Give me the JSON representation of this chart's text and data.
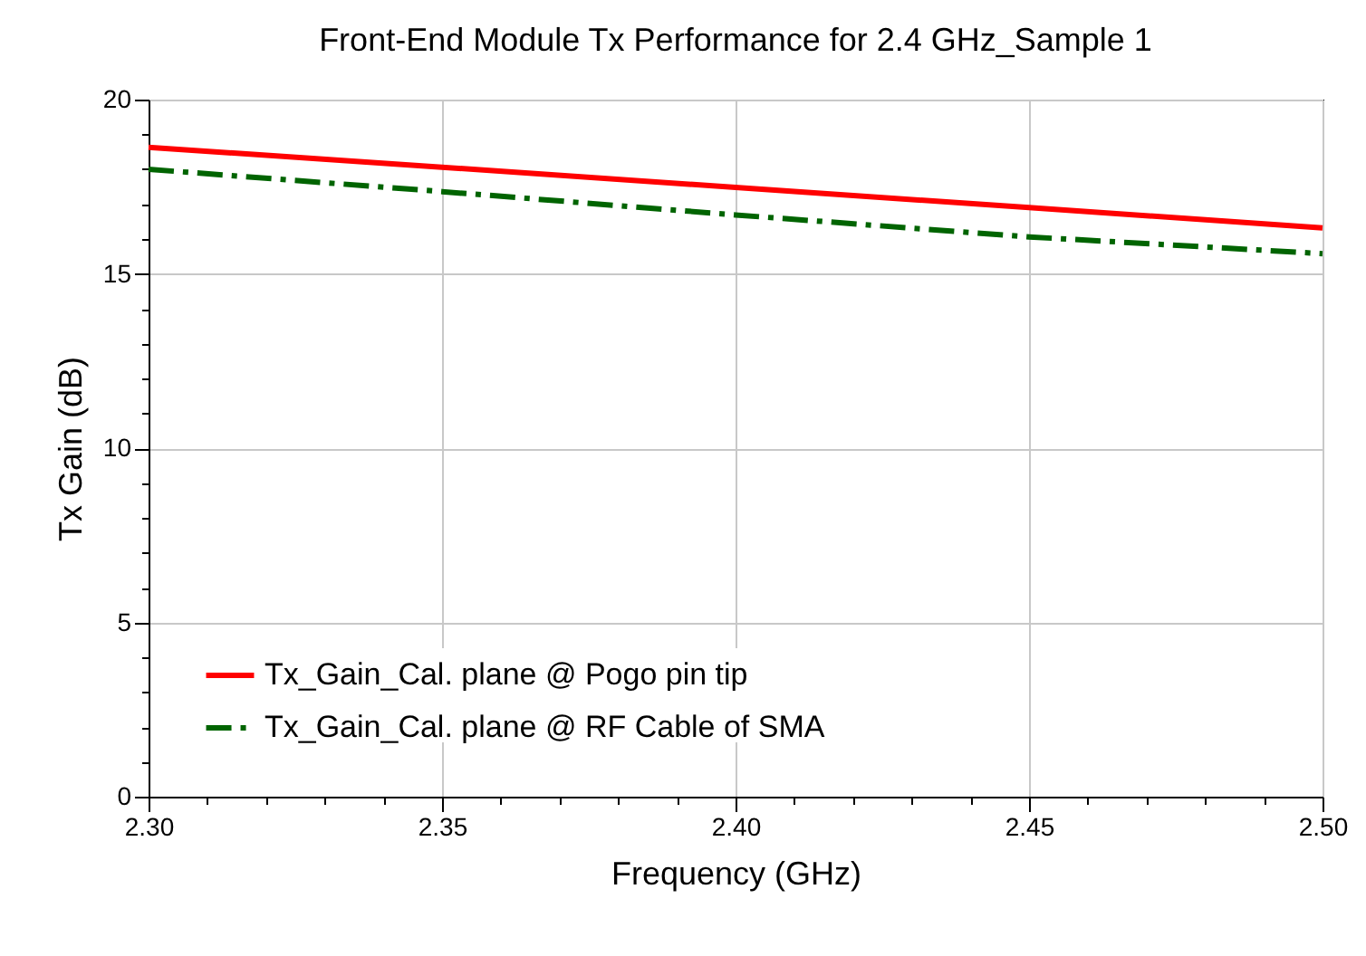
{
  "chart_data": {
    "type": "line",
    "title": "Front-End Module Tx Performance for 2.4 GHz_Sample 1",
    "xlabel": "Frequency (GHz)",
    "ylabel": "Tx Gain (dB)",
    "x": [
      2.3,
      2.35,
      2.4,
      2.45,
      2.5
    ],
    "series": [
      {
        "name": "Tx_Gain_Cal. plane @ Pogo pin tip",
        "color": "#ff0000",
        "line_style": "solid",
        "values": [
          18.63,
          18.06,
          17.48,
          16.9,
          16.32
        ]
      },
      {
        "name": "Tx_Gain_Cal. plane @ RF Cable of SMA",
        "color": "#006400",
        "line_style": "dashed",
        "values": [
          18.0,
          17.36,
          16.69,
          16.06,
          15.58
        ]
      }
    ],
    "xlim": [
      2.3,
      2.5
    ],
    "xticks": [
      {
        "value": 2.3,
        "label": "2.30"
      },
      {
        "value": 2.31,
        "label": null
      },
      {
        "value": 2.32,
        "label": null
      },
      {
        "value": 2.33,
        "label": null
      },
      {
        "value": 2.34,
        "label": null
      },
      {
        "value": 2.35,
        "label": "2.35"
      },
      {
        "value": 2.36,
        "label": null
      },
      {
        "value": 2.37,
        "label": null
      },
      {
        "value": 2.38,
        "label": null
      },
      {
        "value": 2.39,
        "label": null
      },
      {
        "value": 2.4,
        "label": "2.40"
      },
      {
        "value": 2.41,
        "label": null
      },
      {
        "value": 2.42,
        "label": null
      },
      {
        "value": 2.43,
        "label": null
      },
      {
        "value": 2.44,
        "label": null
      },
      {
        "value": 2.45,
        "label": "2.45"
      },
      {
        "value": 2.46,
        "label": null
      },
      {
        "value": 2.47,
        "label": null
      },
      {
        "value": 2.48,
        "label": null
      },
      {
        "value": 2.49,
        "label": null
      },
      {
        "value": 2.5,
        "label": "2.50"
      }
    ],
    "ylim": [
      0,
      20
    ],
    "yticks": [
      0,
      {
        "value": 1,
        "label": null
      },
      {
        "value": 2,
        "label": null
      },
      {
        "value": 3,
        "label": null
      },
      {
        "value": 4,
        "label": null
      },
      5,
      {
        "value": 6,
        "label": null
      },
      {
        "value": 7,
        "label": null
      },
      {
        "value": 8,
        "label": null
      },
      {
        "value": 9,
        "label": null
      },
      10,
      {
        "value": 11,
        "label": null
      },
      {
        "value": 12,
        "label": null
      },
      {
        "value": 13,
        "label": null
      },
      {
        "value": 14,
        "label": null
      },
      15,
      {
        "value": 16,
        "label": null
      },
      {
        "value": 17,
        "label": null
      },
      {
        "value": 18,
        "label": null
      },
      {
        "value": 19,
        "label": null
      },
      20
    ],
    "grid": true,
    "legend": "bottom left"
  }
}
